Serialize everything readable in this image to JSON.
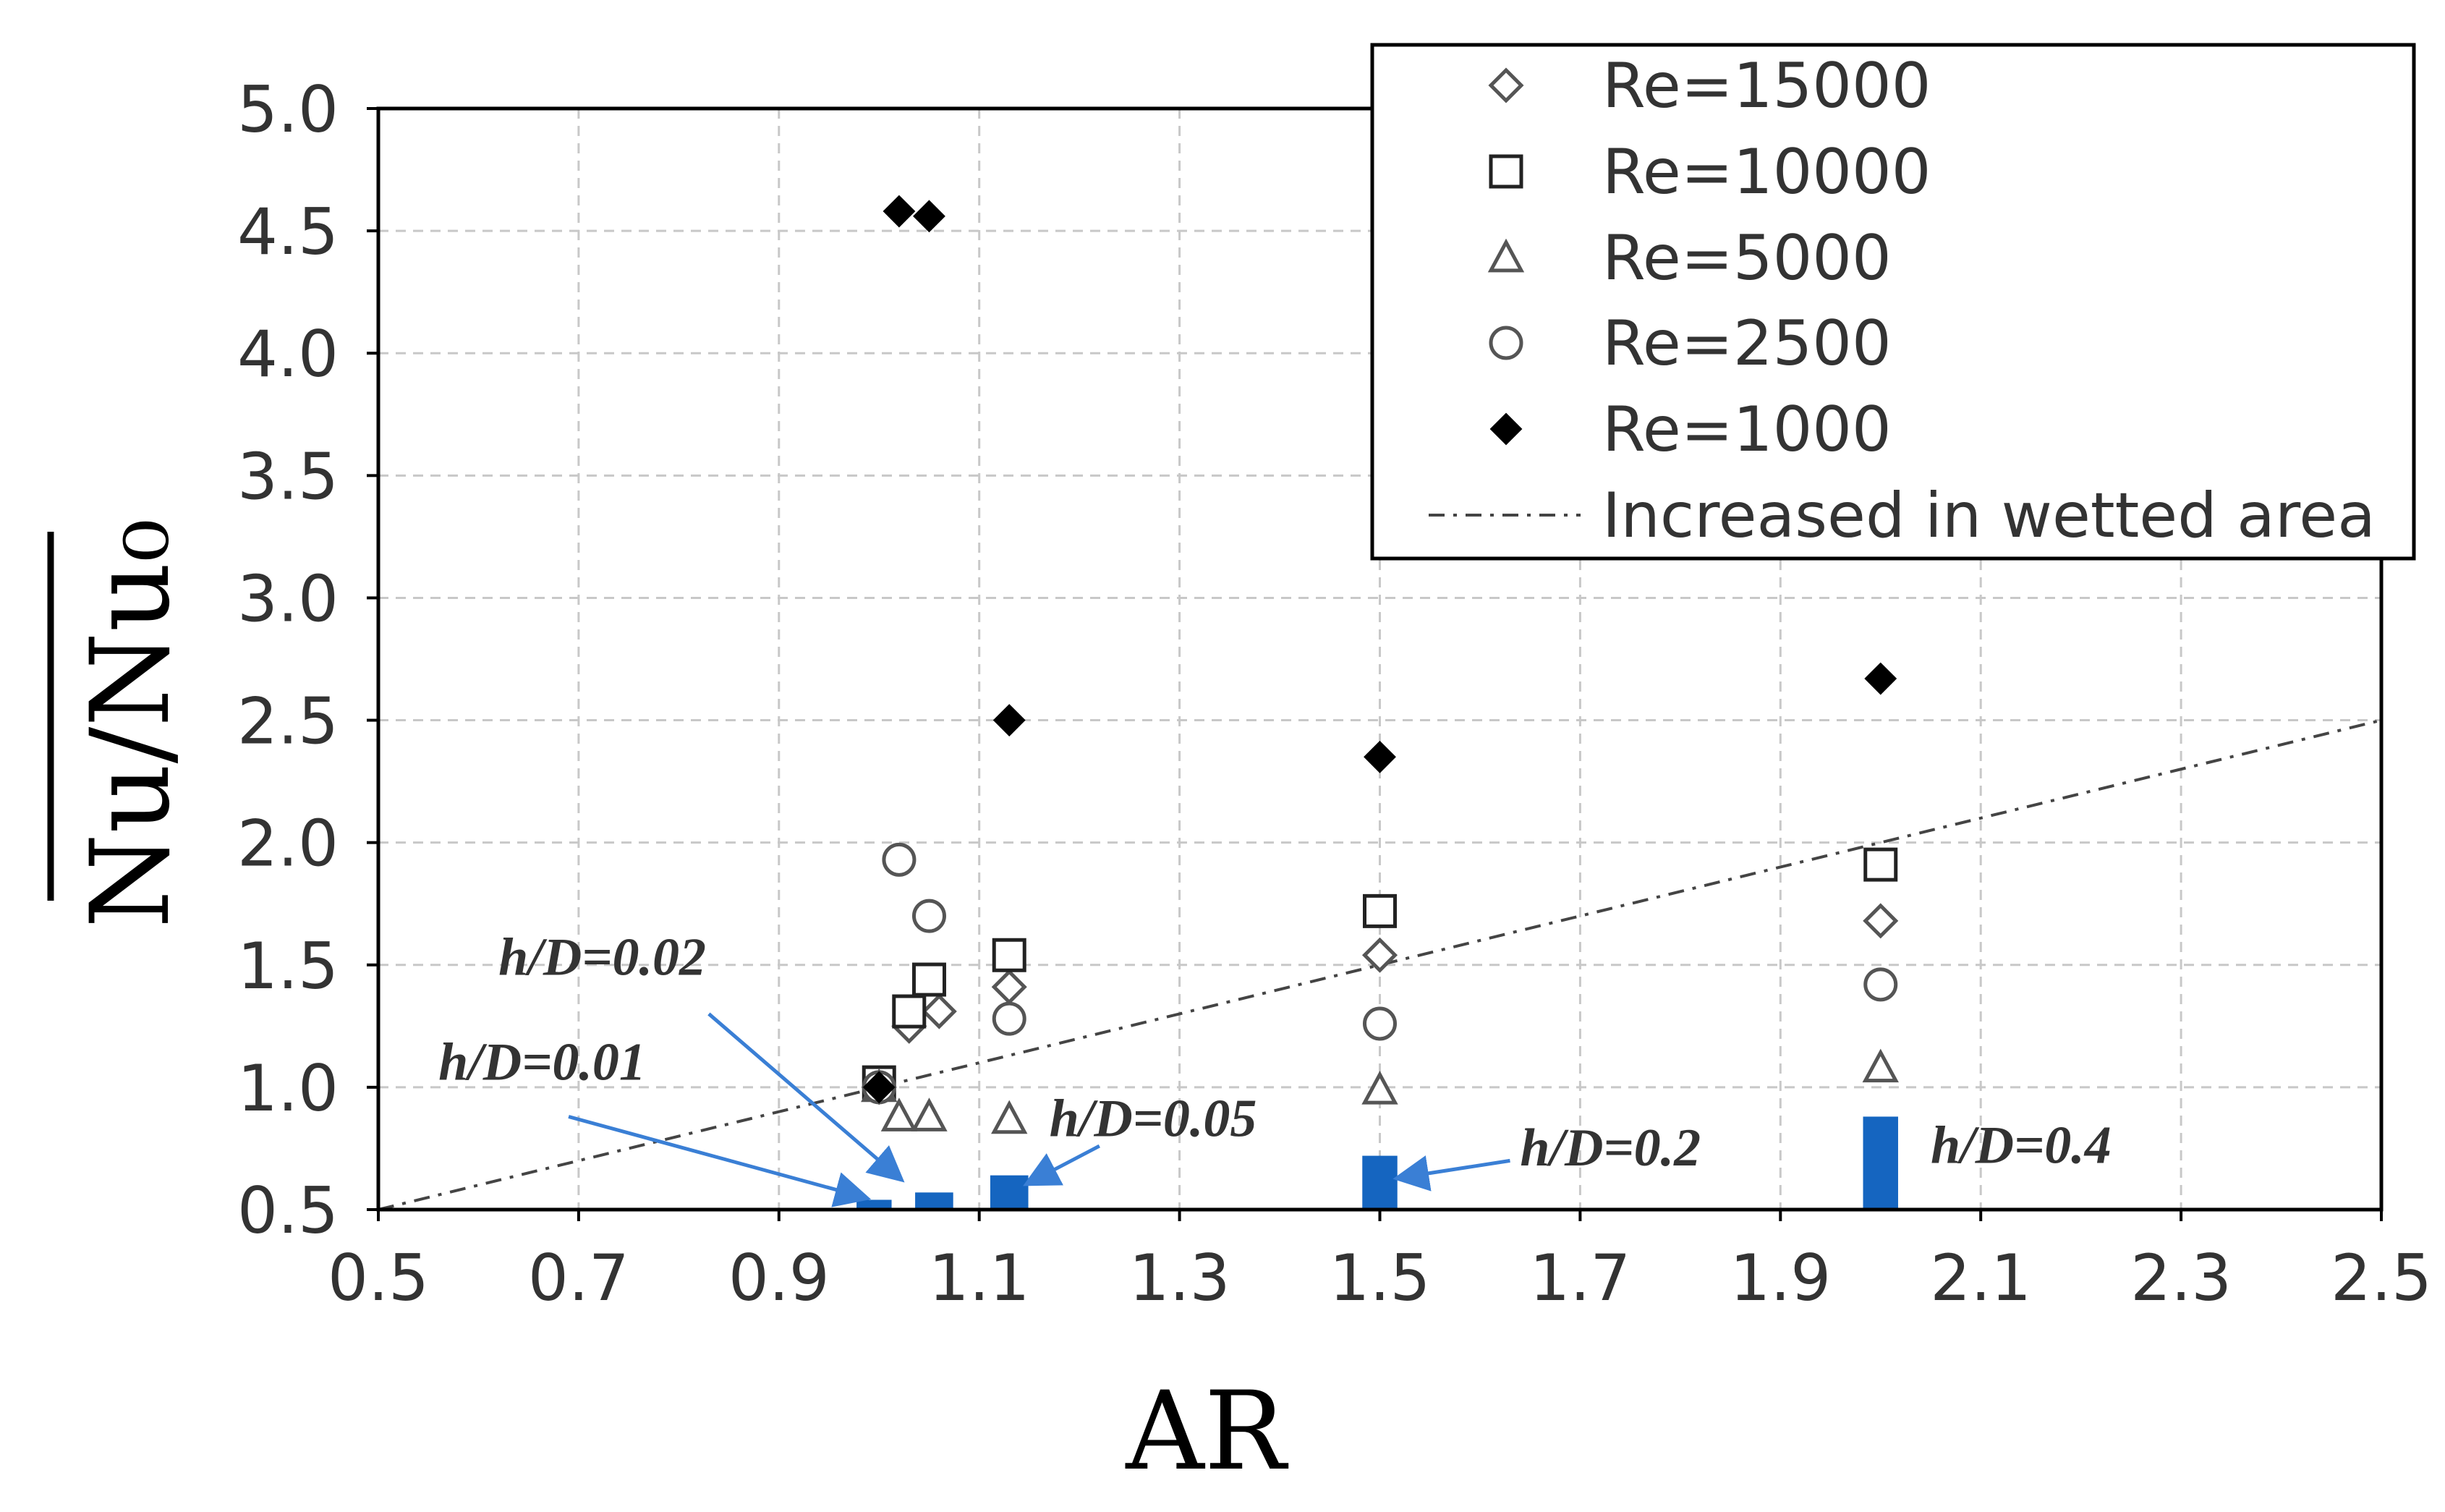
{
  "chart_data": {
    "type": "scatter",
    "title": "",
    "xlabel": "AR",
    "ylabel": "Nu/Nu₀",
    "xlim": [
      0.5,
      2.5
    ],
    "ylim": [
      0.5,
      5.0
    ],
    "xticks": [
      "0.5",
      "0.7",
      "0.9",
      "1.1",
      "1.3",
      "1.5",
      "1.7",
      "1.9",
      "2.1",
      "2.3",
      "2.5"
    ],
    "yticks": [
      "0.5",
      "1.0",
      "1.5",
      "2.0",
      "2.5",
      "3.0",
      "3.5",
      "4.0",
      "4.5",
      "5.0"
    ],
    "grid": true,
    "legend_position": "top-right",
    "series": [
      {
        "name": "Re=15000",
        "marker": "diamond-open",
        "x": [
          1.0,
          1.03,
          1.06,
          1.13,
          1.5,
          2.0
        ],
        "y": [
          1.0,
          1.25,
          1.31,
          1.41,
          1.54,
          1.68
        ]
      },
      {
        "name": "Re=10000",
        "marker": "square-open",
        "x": [
          1.0,
          1.03,
          1.05,
          1.13,
          1.5,
          2.0
        ],
        "y": [
          1.02,
          1.31,
          1.44,
          1.54,
          1.72,
          1.91
        ]
      },
      {
        "name": "Re=5000",
        "marker": "triangle-open",
        "x": [
          1.0,
          1.02,
          1.05,
          1.13,
          1.5,
          2.0
        ],
        "y": [
          1.0,
          0.88,
          0.88,
          0.87,
          0.99,
          1.08
        ]
      },
      {
        "name": "Re=2500",
        "marker": "circle-open",
        "x": [
          1.0,
          1.02,
          1.05,
          1.13,
          1.5,
          2.0
        ],
        "y": [
          1.0,
          1.93,
          1.7,
          1.28,
          1.26,
          1.42
        ]
      },
      {
        "name": "Re=1000",
        "marker": "diamond-filled",
        "x": [
          1.0,
          1.02,
          1.05,
          1.13,
          1.5,
          2.0
        ],
        "y": [
          1.0,
          4.58,
          4.56,
          2.5,
          2.35,
          2.67
        ]
      }
    ],
    "reference_line": {
      "name": "Increased in wetted area",
      "style": "dash-dot",
      "x": [
        0.5,
        2.5
      ],
      "y": [
        0.5,
        2.5
      ]
    },
    "bars": {
      "color": "#1565C0",
      "items": [
        {
          "x": 0.995,
          "width": 0.035,
          "y": 0.54
        },
        {
          "x": 1.055,
          "width": 0.038,
          "y": 0.57
        },
        {
          "x": 1.13,
          "width": 0.038,
          "y": 0.64
        },
        {
          "x": 1.5,
          "width": 0.035,
          "y": 0.72
        },
        {
          "x": 2.0,
          "width": 0.035,
          "y": 0.88
        }
      ]
    },
    "annotations": [
      {
        "text": "h/D=0.02",
        "label_x": 0.62,
        "label_y": 1.46,
        "arrow_from_x": 0.83,
        "arrow_from_y": 1.3,
        "arrow_to_x": 1.02,
        "arrow_to_y": 0.63
      },
      {
        "text": "h/D=0.01",
        "label_x": 0.56,
        "label_y": 1.03,
        "arrow_from_x": 0.69,
        "arrow_from_y": 0.88,
        "arrow_to_x": 0.985,
        "arrow_to_y": 0.55
      },
      {
        "text": "h/D=0.05",
        "label_x": 1.17,
        "label_y": 0.8,
        "arrow_from_x": 1.22,
        "arrow_from_y": 0.76,
        "arrow_to_x": 1.15,
        "arrow_to_y": 0.61
      },
      {
        "text": "h/D=0.2",
        "label_x": 1.64,
        "label_y": 0.68,
        "arrow_from_x": 1.63,
        "arrow_from_y": 0.7,
        "arrow_to_x": 1.52,
        "arrow_to_y": 0.63
      },
      {
        "text": "h/D=0.4",
        "label_x": 2.05,
        "label_y": 0.69,
        "arrow_from_x": null,
        "arrow_from_y": null,
        "arrow_to_x": null,
        "arrow_to_y": null
      }
    ],
    "colors": {
      "axis": "#000000",
      "grid": "#c8c8c8",
      "marker_open": "#555555",
      "marker_filled": "#000000",
      "arrow": "#3a7fd5",
      "reference_line": "#444444"
    }
  }
}
